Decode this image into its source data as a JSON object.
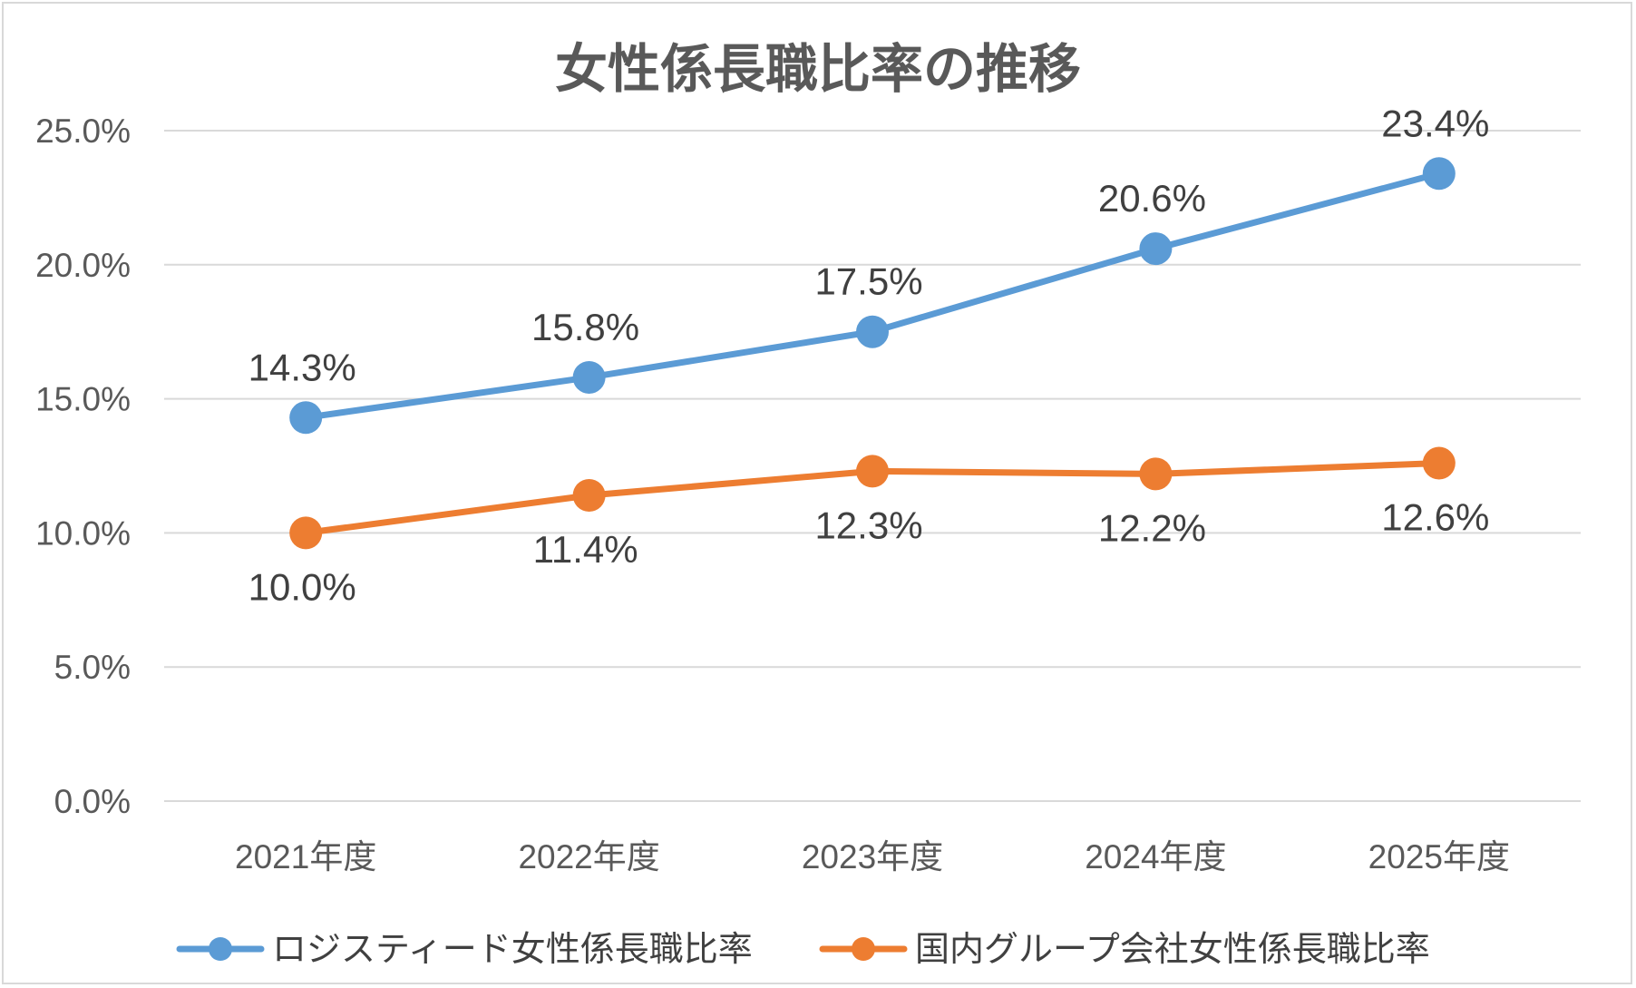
{
  "chart_data": {
    "type": "line",
    "title": "女性係長職比率の推移",
    "xlabel": "",
    "ylabel": "",
    "categories": [
      "2021年度",
      "2022年度",
      "2023年度",
      "2024年度",
      "2025年度"
    ],
    "ylim": [
      0,
      25
    ],
    "yticks": [
      "0.0%",
      "5.0%",
      "10.0%",
      "15.0%",
      "20.0%",
      "25.0%"
    ],
    "grid": true,
    "legend_position": "bottom",
    "series": [
      {
        "name": "ロジスティード女性係長職比率",
        "values": [
          14.3,
          15.8,
          17.5,
          20.6,
          23.4
        ],
        "labels": [
          "14.3%",
          "15.8%",
          "17.5%",
          "20.6%",
          "23.4%"
        ],
        "color": "#5b9bd5",
        "label_position": "above"
      },
      {
        "name": "国内グループ会社女性係長職比率",
        "values": [
          10.0,
          11.4,
          12.3,
          12.2,
          12.6
        ],
        "labels": [
          "10.0%",
          "11.4%",
          "12.3%",
          "12.2%",
          "12.6%"
        ],
        "color": "#ed7d31",
        "label_position": "below"
      }
    ]
  }
}
